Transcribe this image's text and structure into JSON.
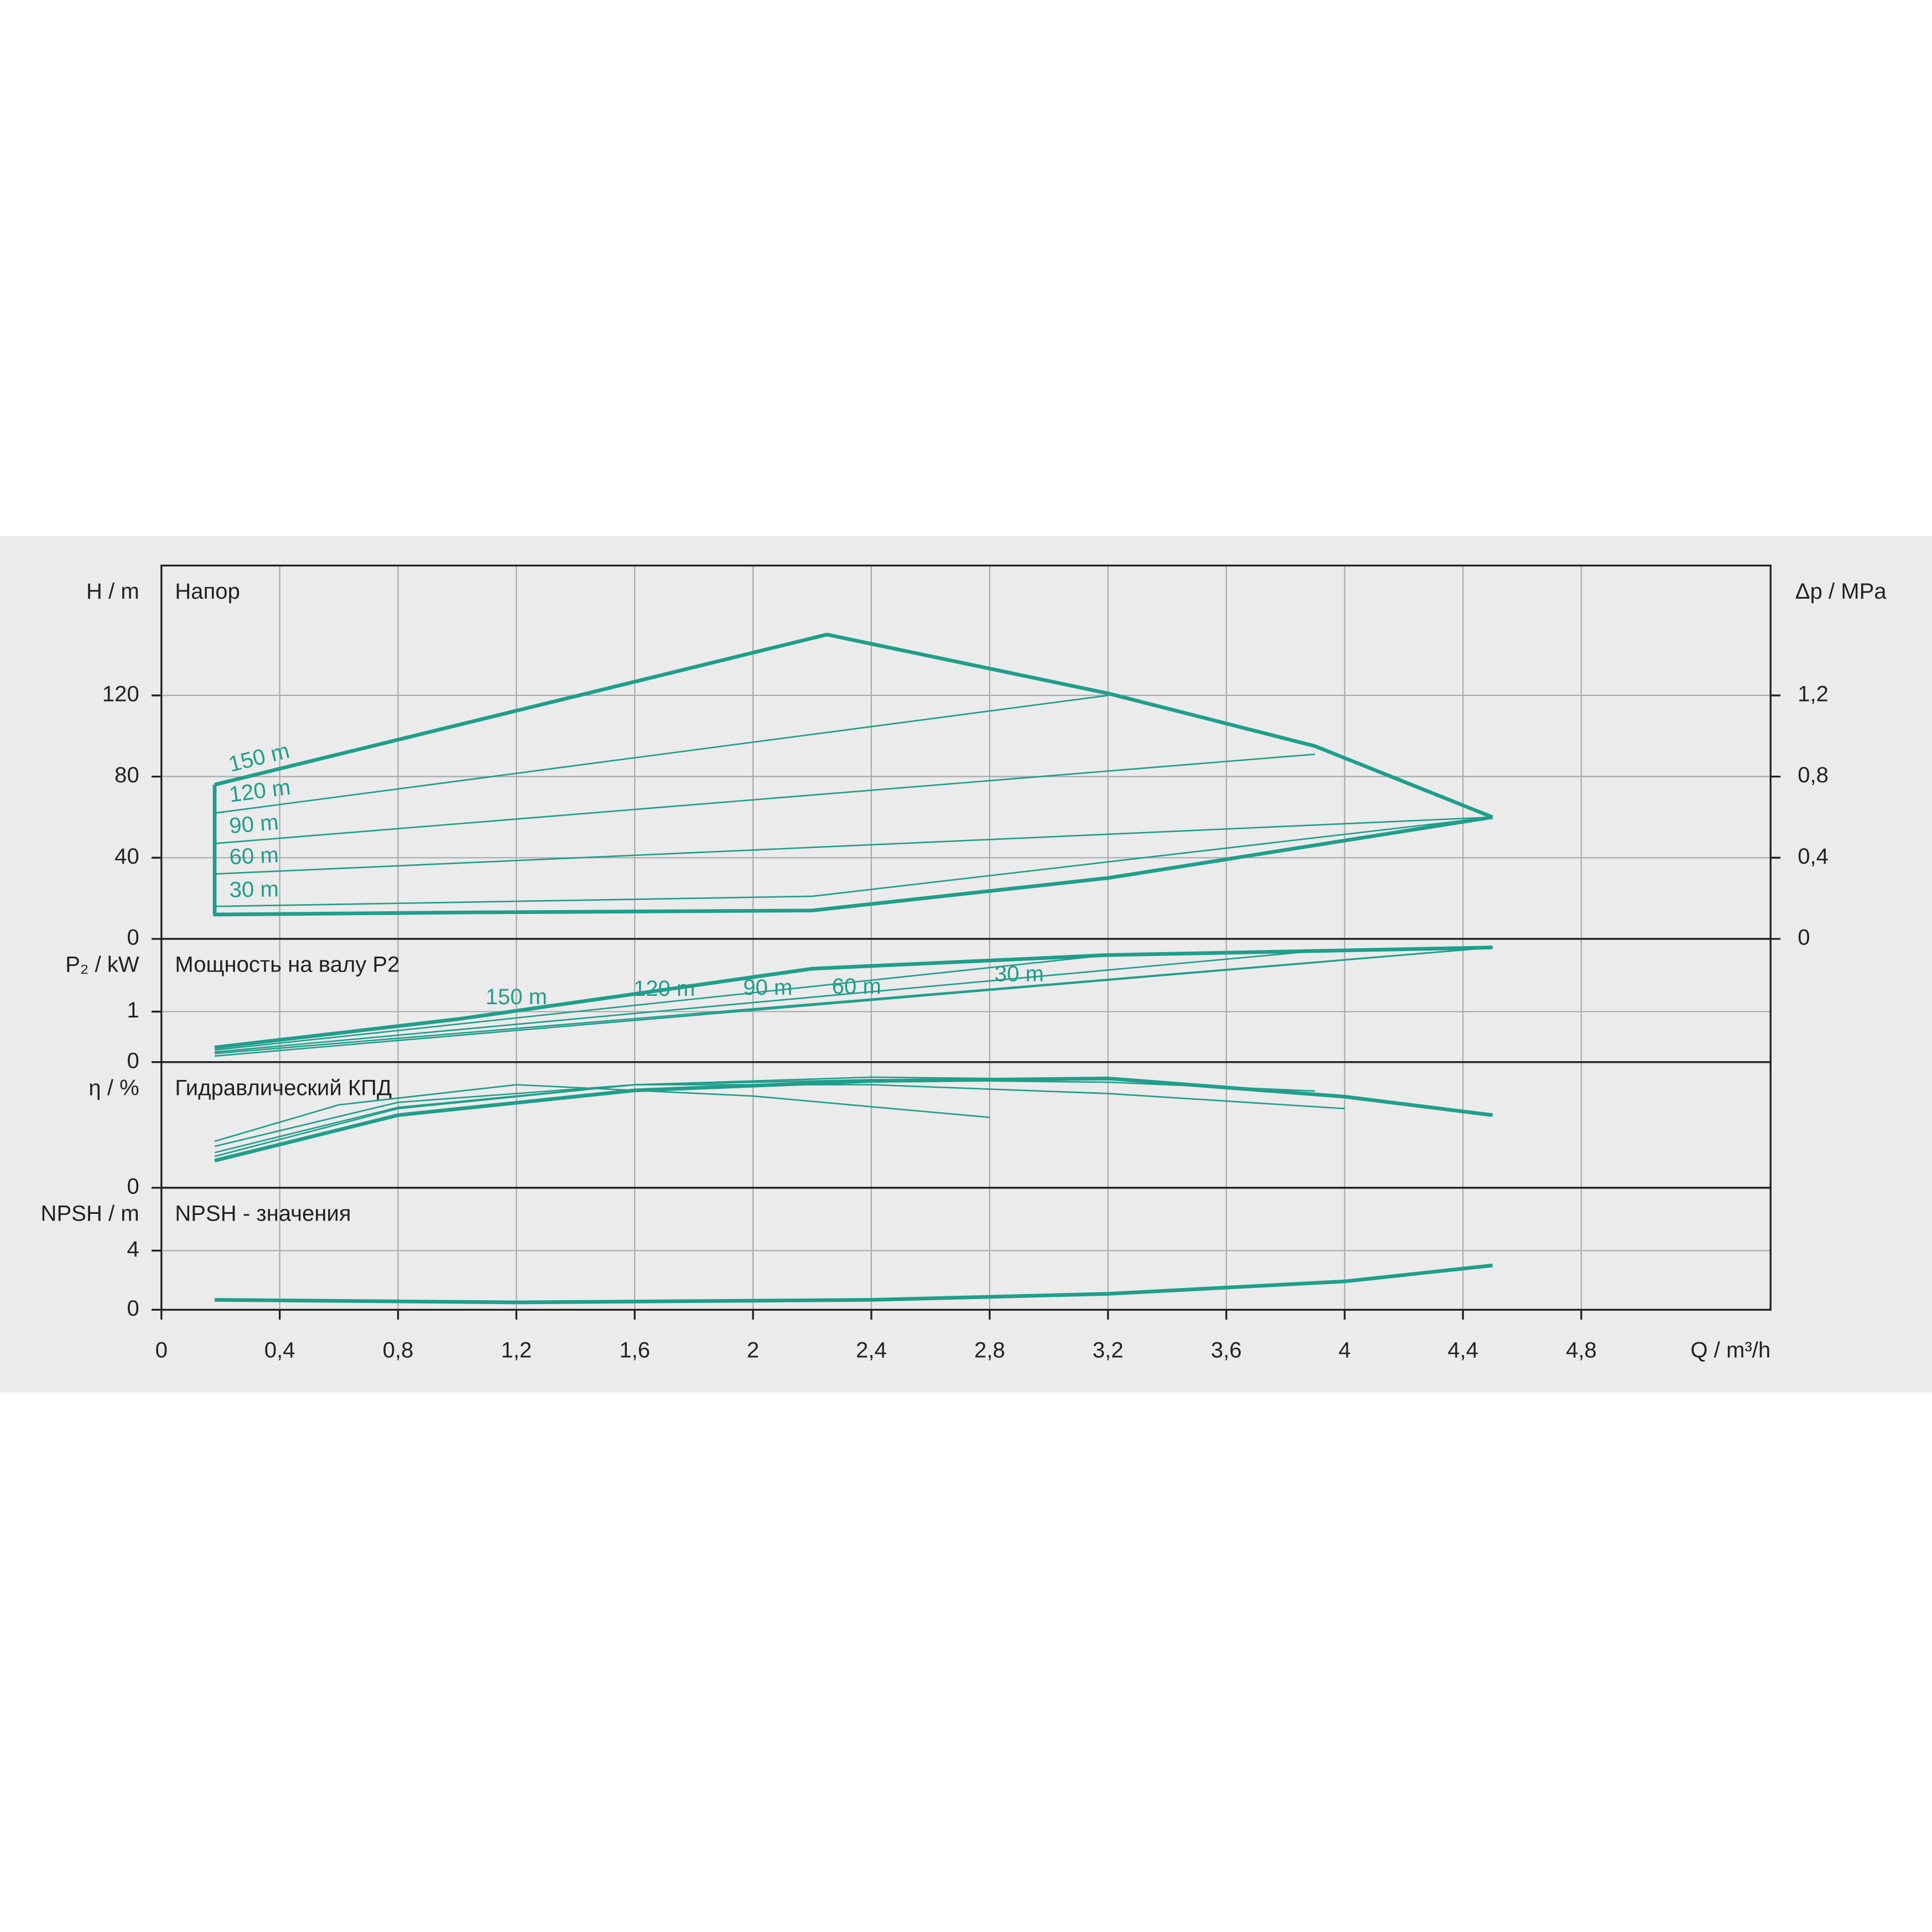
{
  "chart_data": [
    {
      "type": "line",
      "title": "Напор",
      "y_label": "H / m",
      "y2_label": "Δp / MPa",
      "ylim": [
        0,
        184
      ],
      "yticks": [
        0,
        40,
        80,
        120
      ],
      "y2lim": [
        0,
        1.84
      ],
      "y2ticks": [
        0,
        {
          "value": 0.4,
          "label": "0,4"
        },
        {
          "value": 0.8,
          "label": "0,8"
        },
        {
          "value": 1.2,
          "label": "1,2"
        }
      ],
      "grid": true,
      "series_labels": "slope",
      "series": [
        {
          "name": "150 m",
          "color": "#1f9e8c",
          "line_width": 3,
          "x": [
            0.18,
            2.25,
            3.2,
            3.9,
            4.5
          ],
          "values": [
            76,
            150,
            121,
            95,
            60
          ]
        },
        {
          "color": "#1f9e8c",
          "line_width": 3,
          "x": [
            0.18,
            0.18,
            1.0,
            2.2,
            3.2,
            4.5
          ],
          "values": [
            76,
            12,
            13,
            14,
            30,
            60
          ]
        },
        {
          "name": "120 m",
          "color": "#1f9e8c",
          "line_width": 1.2,
          "x": [
            0.18,
            3.2
          ],
          "values": [
            62,
            120
          ]
        },
        {
          "name": "90 m",
          "color": "#1f9e8c",
          "line_width": 1.2,
          "x": [
            0.18,
            3.9
          ],
          "values": [
            47,
            91
          ]
        },
        {
          "name": "60 m",
          "color": "#1f9e8c",
          "line_width": 1.2,
          "x": [
            0.18,
            4.5
          ],
          "values": [
            32,
            60
          ]
        },
        {
          "name": "30 m",
          "color": "#1f9e8c",
          "line_width": 1.2,
          "x": [
            0.18,
            2.2,
            4.5
          ],
          "values": [
            16,
            21,
            60
          ]
        }
      ]
    },
    {
      "type": "line",
      "title": "Мощность на валу P2",
      "y_label": "P₂ / kW",
      "ylim": [
        0,
        2.44
      ],
      "yticks": [
        0,
        1
      ],
      "grid": true,
      "series_labels": "along",
      "series": [
        {
          "name": "150 m",
          "color": "#1f9e8c",
          "line_width": 3,
          "x": [
            0.18,
            1.0,
            2.2,
            3.2,
            4.5
          ],
          "values": [
            0.29,
            0.85,
            1.85,
            2.12,
            2.27
          ]
        },
        {
          "name": "120 m",
          "color": "#1f9e8c",
          "line_width": 1.2,
          "x": [
            0.18,
            3.2
          ],
          "values": [
            0.24,
            2.12
          ]
        },
        {
          "name": "90 m",
          "color": "#1f9e8c",
          "line_width": 1.2,
          "x": [
            0.18,
            3.9
          ],
          "values": [
            0.2,
            2.2
          ]
        },
        {
          "name": "60 m",
          "color": "#1f9e8c",
          "line_width": 1.2,
          "x": [
            0.18,
            4.5
          ],
          "values": [
            0.17,
            2.27
          ]
        },
        {
          "name": "30 m",
          "color": "#1f9e8c",
          "line_width": 1.2,
          "x": [
            0.18,
            4.5
          ],
          "values": [
            0.12,
            2.27
          ]
        }
      ]
    },
    {
      "type": "line",
      "title": "Гидравлический КПД",
      "y_label": "η / %",
      "ylim": [
        0,
        100
      ],
      "yticks": [
        0
      ],
      "grid": true,
      "series": [
        {
          "color": "#1f9e8c",
          "line_width": 1.2,
          "x": [
            0.18,
            0.6,
            1.2,
            2.0,
            2.8
          ],
          "values": [
            37,
            66,
            82,
            73,
            56
          ]
        },
        {
          "color": "#1f9e8c",
          "line_width": 1.2,
          "x": [
            0.18,
            0.8,
            1.6,
            2.4,
            3.2,
            4.0
          ],
          "values": [
            33,
            68,
            82,
            82,
            75,
            63
          ]
        },
        {
          "color": "#1f9e8c",
          "line_width": 1.2,
          "x": [
            0.18,
            0.8,
            1.6,
            2.4,
            3.2,
            3.9
          ],
          "values": [
            28,
            64,
            82,
            86,
            84,
            77
          ]
        },
        {
          "color": "#1f9e8c",
          "line_width": 1.2,
          "x": [
            0.18,
            0.8,
            1.6,
            2.4,
            3.2
          ],
          "values": [
            25,
            63,
            82,
            88,
            86
          ]
        },
        {
          "color": "#1f9e8c",
          "line_width": 3,
          "x": [
            0.18,
            0.8,
            1.6,
            2.4,
            3.2,
            4.0,
            4.5
          ],
          "values": [
            21.6,
            57.8,
            77.5,
            85,
            87,
            72.5,
            57.8
          ]
        }
      ]
    },
    {
      "type": "line",
      "title": "NPSH - значения",
      "y_label": "NPSH / m",
      "x_label": "Q / m³/h",
      "ylim": [
        0,
        8.25
      ],
      "yticks": [
        0,
        4
      ],
      "grid": true,
      "xlim": [
        0,
        5.44
      ],
      "xticks": [
        0,
        {
          "value": 0.4,
          "label": "0,4"
        },
        {
          "value": 0.8,
          "label": "0,8"
        },
        {
          "value": 1.2,
          "label": "1,2"
        },
        {
          "value": 1.6,
          "label": "1,6"
        },
        2,
        {
          "value": 2.4,
          "label": "2,4"
        },
        {
          "value": 2.8,
          "label": "2,8"
        },
        {
          "value": 3.2,
          "label": "3,2"
        },
        {
          "value": 3.6,
          "label": "3,6"
        },
        4,
        {
          "value": 4.4,
          "label": "4,4"
        },
        {
          "value": 4.8,
          "label": "4,8"
        }
      ],
      "series": [
        {
          "color": "#1f9e8c",
          "line_width": 3,
          "x": [
            0.18,
            1.2,
            2.4,
            3.2,
            4.0,
            4.5
          ],
          "values": [
            0.67,
            0.5,
            0.67,
            1.08,
            1.92,
            3.0
          ]
        }
      ]
    }
  ]
}
